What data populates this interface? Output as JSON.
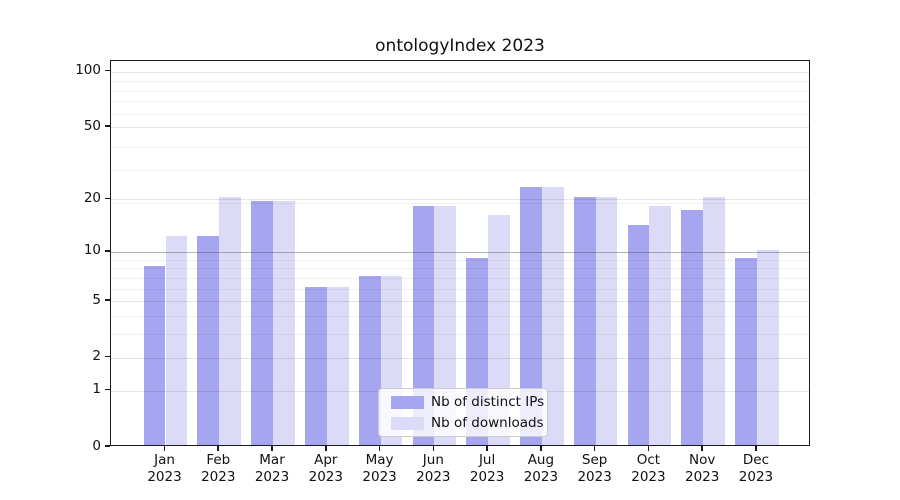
{
  "title": "ontologyIndex 2023",
  "chart_data": {
    "type": "bar",
    "title": "ontologyIndex 2023",
    "xlabel": "",
    "ylabel": "",
    "y_scale": "log(1+x)",
    "y_ticks": [
      0,
      1,
      2,
      5,
      10,
      20,
      50,
      100
    ],
    "y_minor_gridlines": [
      3,
      4,
      6,
      7,
      8,
      9,
      19,
      29,
      39,
      59,
      69,
      79,
      89
    ],
    "ylim": [
      0,
      110
    ],
    "grid": true,
    "legend_position": "bottom-center",
    "categories": [
      "Jan",
      "Feb",
      "Mar",
      "Apr",
      "May",
      "Jun",
      "Jul",
      "Aug",
      "Sep",
      "Oct",
      "Nov",
      "Dec"
    ],
    "category_year": "2023",
    "series": [
      {
        "name": "Nb of distinct IPs",
        "color": "#a5a5f0",
        "values": [
          8,
          12,
          19,
          6,
          7,
          18,
          9,
          23,
          20,
          14,
          17,
          9
        ]
      },
      {
        "name": "Nb of downloads",
        "color": "#dbdbf8",
        "values": [
          12,
          20,
          19,
          6,
          7,
          18,
          16,
          23,
          20,
          18,
          20,
          10
        ]
      }
    ]
  },
  "colors": {
    "spine": "#1a1a1a",
    "major_grid": "#6e6e6e",
    "minor_grid": "#ededed",
    "text": "#111111",
    "legend_border": "#cccccc"
  }
}
